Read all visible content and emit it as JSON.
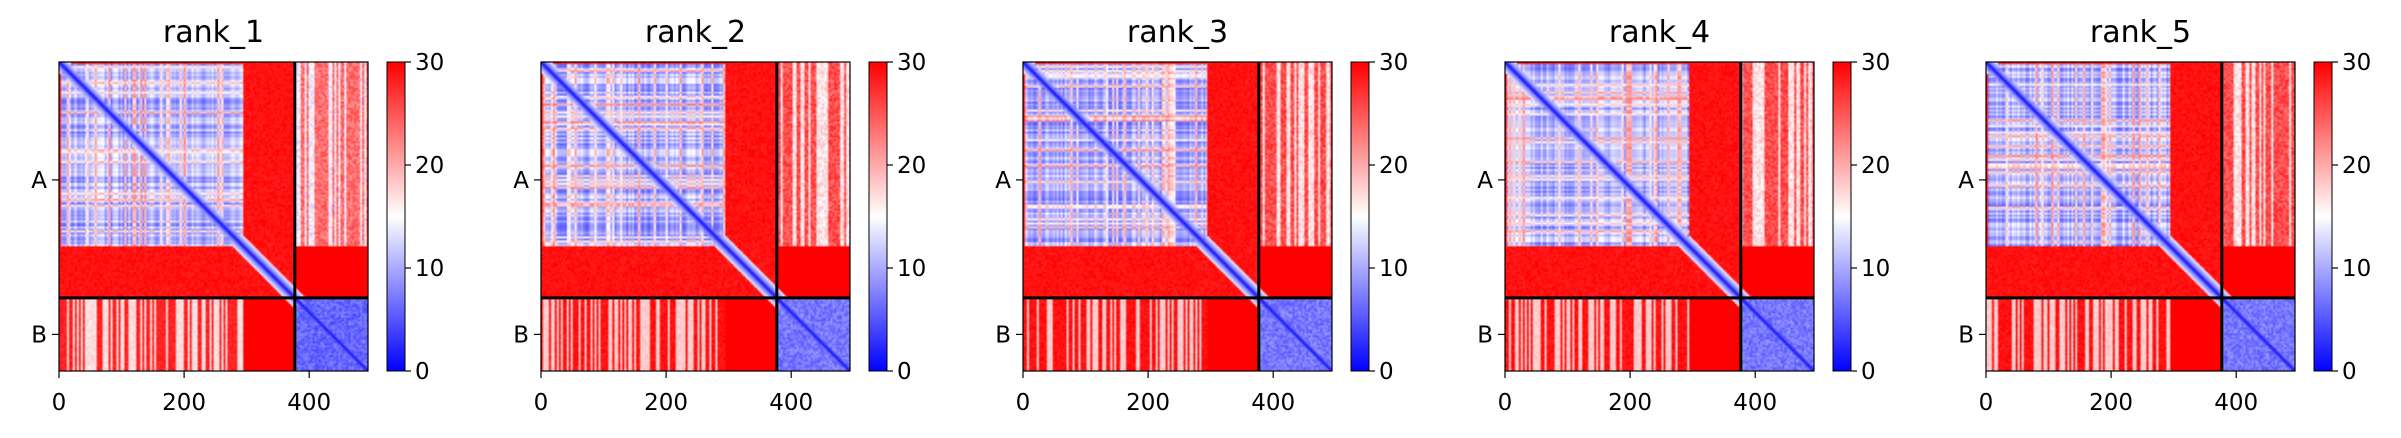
{
  "chart_data": [
    {
      "type": "heatmap",
      "title": "rank_1",
      "xlabel": "",
      "ylabel": "",
      "xlim": [
        0,
        494
      ],
      "x_ticks": [
        0,
        200,
        400
      ],
      "y_tick_labels": [
        "A",
        "B"
      ],
      "chain_boundary": 377,
      "colorbar": {
        "min": 0,
        "max": 30,
        "ticks": [
          0,
          10,
          20,
          30
        ],
        "colormap": [
          "#0000ff",
          "#ffffff",
          "#ff0000"
        ]
      },
      "blocks": {
        "A_core_end": 296,
        "A_A_linker": 30,
        "A_B": 21,
        "B_A": 26,
        "B_B": 4,
        "A_core": 5
      }
    },
    {
      "type": "heatmap",
      "title": "rank_2",
      "xlabel": "",
      "ylabel": "",
      "xlim": [
        0,
        494
      ],
      "x_ticks": [
        0,
        200,
        400
      ],
      "y_tick_labels": [
        "A",
        "B"
      ],
      "chain_boundary": 377,
      "colorbar": {
        "min": 0,
        "max": 30,
        "ticks": [
          0,
          10,
          20,
          30
        ],
        "colormap": [
          "#0000ff",
          "#ffffff",
          "#ff0000"
        ]
      },
      "blocks": {
        "A_core_end": 296,
        "A_A_linker": 30,
        "A_B": 23,
        "B_A": 27,
        "B_B": 5,
        "A_core": 5
      }
    },
    {
      "type": "heatmap",
      "title": "rank_3",
      "xlabel": "",
      "ylabel": "",
      "xlim": [
        0,
        494
      ],
      "x_ticks": [
        0,
        200,
        400
      ],
      "y_tick_labels": [
        "A",
        "B"
      ],
      "chain_boundary": 377,
      "colorbar": {
        "min": 0,
        "max": 30,
        "ticks": [
          0,
          10,
          20,
          30
        ],
        "colormap": [
          "#0000ff",
          "#ffffff",
          "#ff0000"
        ]
      },
      "blocks": {
        "A_core_end": 296,
        "A_A_linker": 30,
        "A_B": 23,
        "B_A": 27,
        "B_B": 5,
        "A_core": 5
      }
    },
    {
      "type": "heatmap",
      "title": "rank_4",
      "xlabel": "",
      "ylabel": "",
      "xlim": [
        0,
        494
      ],
      "x_ticks": [
        0,
        200,
        400
      ],
      "y_tick_labels": [
        "A",
        "B"
      ],
      "chain_boundary": 377,
      "colorbar": {
        "min": 0,
        "max": 30,
        "ticks": [
          0,
          10,
          20,
          30
        ],
        "colormap": [
          "#0000ff",
          "#ffffff",
          "#ff0000"
        ]
      },
      "blocks": {
        "A_core_end": 296,
        "A_A_linker": 30,
        "A_B": 23,
        "B_A": 27,
        "B_B": 5,
        "A_core": 5
      }
    },
    {
      "type": "heatmap",
      "title": "rank_5",
      "xlabel": "",
      "ylabel": "",
      "xlim": [
        0,
        494
      ],
      "x_ticks": [
        0,
        200,
        400
      ],
      "y_tick_labels": [
        "A",
        "B"
      ],
      "chain_boundary": 377,
      "colorbar": {
        "min": 0,
        "max": 30,
        "ticks": [
          0,
          10,
          20,
          30
        ],
        "colormap": [
          "#0000ff",
          "#ffffff",
          "#ff0000"
        ]
      },
      "blocks": {
        "A_core_end": 296,
        "A_A_linker": 30,
        "A_B": 23,
        "B_A": 27,
        "B_B": 5,
        "A_core": 5
      }
    }
  ]
}
